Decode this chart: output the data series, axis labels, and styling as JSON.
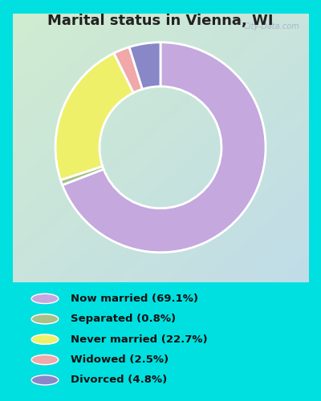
{
  "title": "Marital status in Vienna, WI",
  "slices": [
    69.1,
    0.8,
    22.7,
    2.5,
    4.8
  ],
  "labels": [
    "Now married (69.1%)",
    "Separated (0.8%)",
    "Never married (22.7%)",
    "Widowed (2.5%)",
    "Divorced (4.8%)"
  ],
  "colors": [
    "#c4a8de",
    "#a8c08a",
    "#eef06a",
    "#f0a8a8",
    "#8888c8"
  ],
  "bg_outer": "#00e0e0",
  "chart_bg_tl": "#cce8cc",
  "chart_bg_br": "#c0dce8",
  "title_color": "#222222",
  "title_fontsize": 13,
  "watermark": "City-Data.com",
  "legend_fontsize": 9.5,
  "donut_linewidth": 2.0
}
